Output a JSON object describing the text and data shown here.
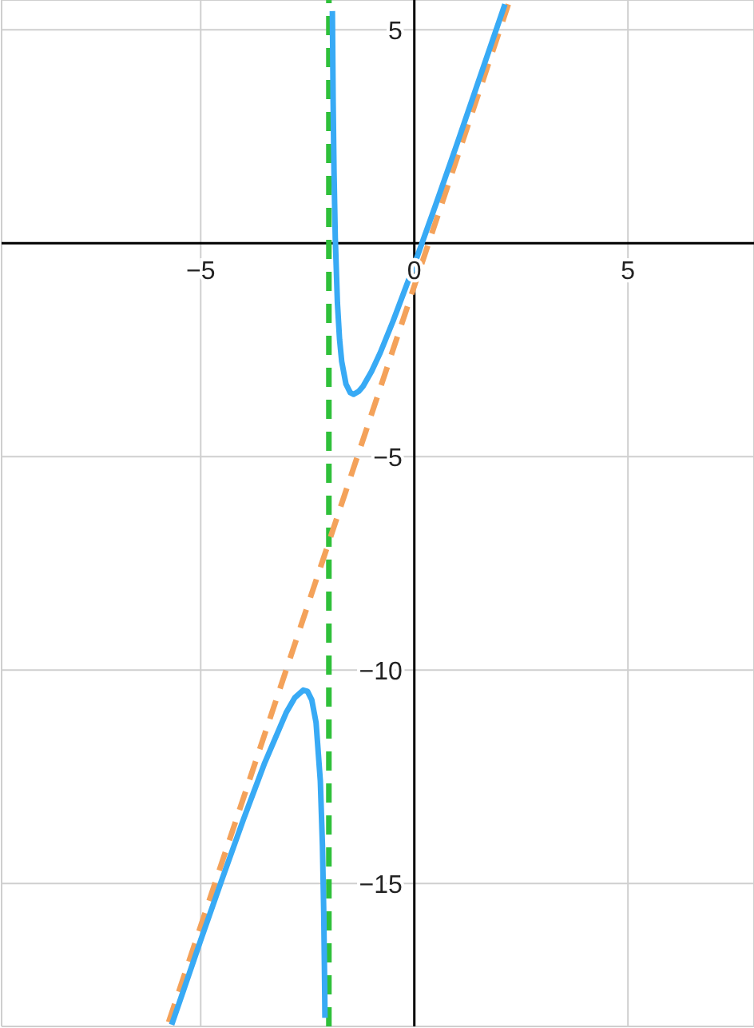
{
  "chart_data": {
    "type": "line",
    "xlim": [
      -9.66,
      7.95
    ],
    "ylim": [
      -18.35,
      5.7
    ],
    "xticks": [
      {
        "value": -5,
        "label": "−5"
      },
      {
        "value": 0,
        "label": "0"
      },
      {
        "value": 5,
        "label": "5"
      }
    ],
    "yticks": [
      {
        "value": -15,
        "label": "−15"
      },
      {
        "value": -10,
        "label": "−10"
      },
      {
        "value": -5,
        "label": "−5"
      },
      {
        "value": 0,
        "label": null
      },
      {
        "value": 5,
        "label": "5"
      }
    ],
    "grid": true,
    "marker": "none",
    "series": [
      {
        "color": "#f4a25a",
        "line_style": "dashed",
        "x": [
          -5.75,
          2.2
        ],
        "values": [
          -18.25,
          5.6
        ]
      },
      {
        "color": "#38aaf5",
        "line_style": "solid",
        "x": [
          -5.68,
          -5.5,
          -5,
          -4.5,
          -4,
          -3.5,
          -3,
          -2.8,
          -2.6,
          -2.5,
          -2.4,
          -2.3,
          -2.2,
          -2.15,
          -2.12,
          -2.1,
          -2.095,
          -2.092
        ],
        "values": [
          -18.31,
          -17.79,
          -16.33,
          -14.9,
          -13.5,
          -12.17,
          -11,
          -10.65,
          -10.47,
          -10.5,
          -10.7,
          -11.23,
          -12.6,
          -14.12,
          -15.69,
          -17.3,
          -17.81,
          -18.15
        ]
      },
      {
        "color": "#38aaf5",
        "line_style": "solid",
        "x": [
          -1.918,
          -1.9,
          -1.88,
          -1.85,
          -1.8,
          -1.75,
          -1.7,
          -1.6,
          -1.5,
          -1.42,
          -1.3,
          -1.2,
          -1,
          -0.8,
          -0.5,
          0,
          0.5,
          1,
          1.5,
          2,
          2.12
        ],
        "values": [
          5.44,
          3.3,
          1.69,
          0.12,
          -1.4,
          -2.25,
          -2.77,
          -3.3,
          -3.5,
          -3.54,
          -3.47,
          -3.35,
          -3,
          -2.57,
          -1.83,
          -0.5,
          0.9,
          2.33,
          3.79,
          5.25,
          5.6
        ]
      }
    ],
    "ref_lines": [
      {
        "axis": "x",
        "value": -2,
        "label": null,
        "color": "#2fc03a",
        "line_style": "dashed"
      }
    ]
  }
}
